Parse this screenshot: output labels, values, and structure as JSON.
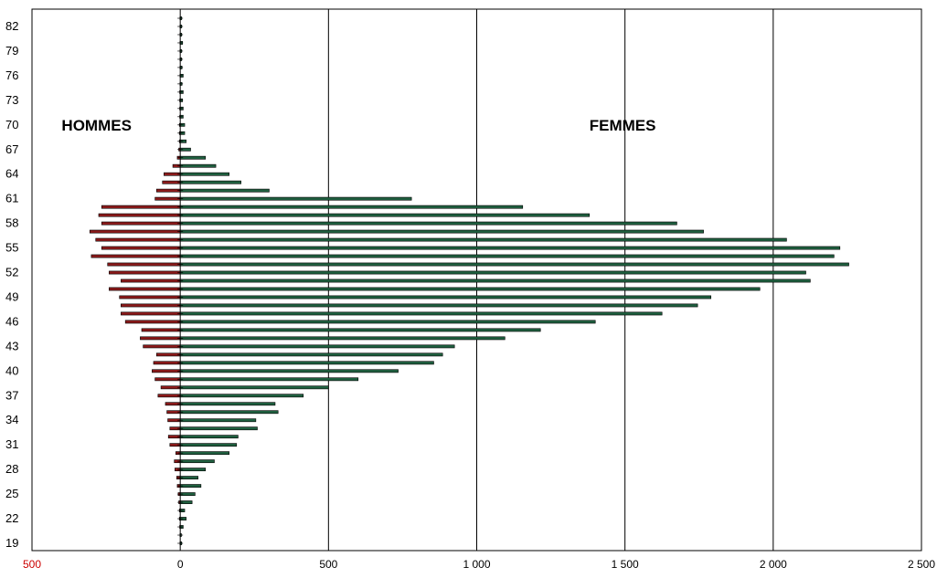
{
  "chart_data": {
    "type": "bar",
    "orientation": "horizontal",
    "x_ticks": [
      {
        "value": -500,
        "label": "500",
        "color": "#cc0000"
      },
      {
        "value": 0,
        "label": "0",
        "color": "#000000"
      },
      {
        "value": 500,
        "label": "500",
        "color": "#000000"
      },
      {
        "value": 1000,
        "label": "1 000",
        "color": "#000000"
      },
      {
        "value": 1500,
        "label": "1 500",
        "color": "#000000"
      },
      {
        "value": 2000,
        "label": "2 000",
        "color": "#000000"
      },
      {
        "value": 2500,
        "label": "2 500",
        "color": "#000000"
      }
    ],
    "xlim": [
      -500,
      2500
    ],
    "y_tick_labels": [
      "19",
      "22",
      "25",
      "28",
      "31",
      "34",
      "37",
      "40",
      "43",
      "46",
      "49",
      "52",
      "55",
      "58",
      "61",
      "64",
      "67",
      "70",
      "73",
      "76",
      "79",
      "82"
    ],
    "ylim": [
      19,
      83
    ],
    "grid": "vertical",
    "series": [
      {
        "name": "HOMMES",
        "color": "#8b1a1a",
        "ages": [
          19,
          20,
          21,
          22,
          23,
          24,
          25,
          26,
          27,
          28,
          29,
          30,
          31,
          32,
          33,
          34,
          35,
          36,
          37,
          38,
          39,
          40,
          41,
          42,
          43,
          44,
          45,
          46,
          47,
          48,
          49,
          50,
          51,
          52,
          53,
          54,
          55,
          56,
          57,
          58,
          59,
          60,
          61,
          62,
          63,
          64,
          65,
          66,
          67,
          68,
          69,
          70,
          71,
          72,
          73,
          74,
          75,
          76,
          77,
          78,
          79,
          80,
          81,
          82,
          83
        ],
        "values": [
          -1,
          -1,
          -2,
          -3,
          -3,
          -5,
          -7,
          -10,
          -12,
          -18,
          -20,
          -15,
          -35,
          -40,
          -35,
          -42,
          -45,
          -50,
          -75,
          -65,
          -85,
          -95,
          -90,
          -80,
          -125,
          -135,
          -130,
          -185,
          -200,
          -200,
          -205,
          -240,
          -200,
          -240,
          -245,
          -300,
          -265,
          -285,
          -305,
          -265,
          -275,
          -265,
          -85,
          -80,
          -60,
          -55,
          -25,
          -10,
          -5,
          -3,
          -3,
          -3,
          -2,
          -2,
          -2,
          -2,
          -1,
          -1,
          -1,
          -1,
          -1,
          -1,
          -1,
          -1,
          -1
        ]
      },
      {
        "name": "FEMMES",
        "color": "#1f5f3f",
        "ages": [
          19,
          20,
          21,
          22,
          23,
          24,
          25,
          26,
          27,
          28,
          29,
          30,
          31,
          32,
          33,
          34,
          35,
          36,
          37,
          38,
          39,
          40,
          41,
          42,
          43,
          44,
          45,
          46,
          47,
          48,
          49,
          50,
          51,
          52,
          53,
          54,
          55,
          56,
          57,
          58,
          59,
          60,
          61,
          62,
          63,
          64,
          65,
          66,
          67,
          68,
          69,
          70,
          71,
          72,
          73,
          74,
          75,
          76,
          77,
          78,
          79,
          80,
          81,
          82,
          83
        ],
        "values": [
          5,
          4,
          10,
          20,
          15,
          40,
          50,
          70,
          60,
          85,
          115,
          165,
          190,
          195,
          260,
          255,
          330,
          320,
          415,
          500,
          600,
          735,
          855,
          885,
          925,
          1095,
          1215,
          1400,
          1625,
          1745,
          1790,
          1955,
          2125,
          2110,
          2255,
          2205,
          2225,
          2045,
          1765,
          1675,
          1380,
          1155,
          780,
          300,
          205,
          165,
          120,
          85,
          35,
          20,
          15,
          15,
          10,
          10,
          8,
          10,
          6,
          10,
          6,
          5,
          5,
          8,
          5,
          5,
          5
        ]
      }
    ],
    "annotations": [
      {
        "text": "HOMMES",
        "x": -400,
        "y": 70
      },
      {
        "text": "FEMMES",
        "x": 1380,
        "y": 70
      }
    ]
  }
}
